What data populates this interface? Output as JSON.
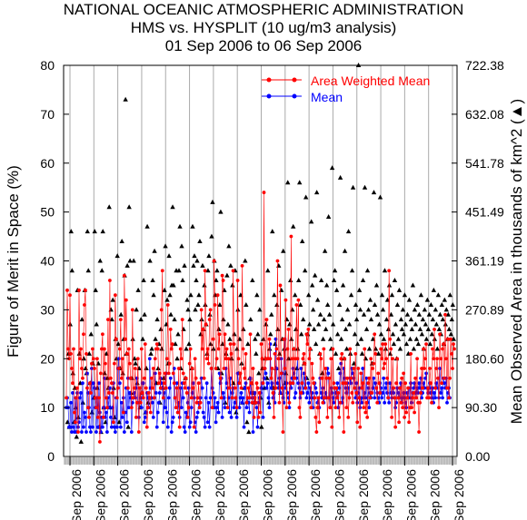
{
  "chart_data": {
    "type": "line",
    "title": [
      "NATIONAL OCEANIC ATMOSPHERIC ADMINISTRATION",
      "HMS vs. HYSPLIT (10 ug/m3 analysis)",
      "01 Sep 2006 to 06 Sep 2006"
    ],
    "ylabel": "Figure of Merit in Space (%)",
    "y2label": "Mean Observed Area in thousands of km^2 (▲)",
    "ylim": [
      0,
      80
    ],
    "yticks": [
      "0",
      "10",
      "20",
      "30",
      "40",
      "50",
      "60",
      "70",
      "80"
    ],
    "y2lim": [
      0,
      722.38
    ],
    "y2ticks": [
      "0.00",
      "90.30",
      "180.60",
      "270.89",
      "361.19",
      "451.49",
      "541.78",
      "632.08",
      "722.38"
    ],
    "xtick_label": "Sep 2006",
    "xtick_count": 17,
    "legend_placement": "top-right",
    "colors": {
      "area_weighted_mean": "#ff0000",
      "mean": "#0000ff",
      "area": "#000000",
      "grid": "#aaaaaa"
    },
    "series": [
      {
        "name": "Area Weighted Mean",
        "values": [
          12,
          34,
          22,
          20,
          33,
          21,
          18,
          15,
          22,
          9,
          7,
          12,
          14,
          5,
          34,
          20,
          22,
          18,
          16,
          25,
          31,
          34,
          21,
          14,
          10,
          8,
          15,
          13,
          19,
          22,
          20,
          18,
          12,
          10,
          20,
          8,
          12,
          3,
          17,
          22,
          25,
          8,
          22,
          19,
          12,
          10,
          28,
          13,
          36,
          16,
          15,
          13,
          7,
          19,
          33,
          24,
          12,
          14,
          18,
          22,
          28,
          16,
          20,
          9,
          37,
          24,
          32,
          21,
          14,
          22,
          19,
          16,
          10,
          30,
          12,
          14,
          18,
          8,
          11,
          20,
          5,
          14,
          11,
          22,
          13,
          12,
          16,
          23,
          14,
          6,
          10,
          13,
          12,
          9,
          16,
          14,
          18,
          12,
          20,
          22,
          23,
          22,
          15,
          17,
          14,
          30,
          38,
          12,
          15,
          17,
          14,
          20,
          31,
          17,
          19,
          26,
          22,
          23,
          17,
          15,
          12,
          10,
          14,
          9,
          18,
          6,
          22,
          20,
          28,
          17,
          15,
          14,
          16,
          13,
          8,
          10,
          19,
          22,
          12,
          18,
          14,
          6,
          20,
          16,
          11,
          12,
          15,
          10,
          11,
          30,
          22,
          26,
          16,
          38,
          27,
          20,
          22,
          19,
          28,
          30,
          18,
          10,
          24,
          40,
          31,
          18,
          20,
          33,
          22,
          25,
          16,
          12,
          37,
          36,
          18,
          25,
          20,
          22,
          10,
          20,
          14,
          23,
          21,
          12,
          38,
          23,
          14,
          12,
          10,
          36,
          20,
          15,
          17,
          14,
          39,
          22,
          18,
          16,
          21,
          11,
          12,
          14,
          12,
          25,
          15,
          11,
          18,
          8,
          12,
          11,
          15,
          14,
          8,
          13,
          9,
          23,
          20,
          15,
          54,
          18,
          20,
          28,
          20,
          20,
          24,
          20,
          16,
          18,
          13,
          8,
          21,
          14,
          22,
          40,
          20,
          11,
          35,
          17,
          14,
          5,
          24,
          18,
          32,
          10,
          22,
          26,
          11,
          15,
          45,
          20,
          15,
          22,
          16,
          20,
          31,
          20,
          32,
          10,
          8,
          13,
          15,
          20,
          21,
          19,
          14,
          25,
          23,
          26,
          20,
          22,
          10,
          19,
          16,
          15,
          12,
          8,
          5,
          10,
          12,
          7,
          21,
          20,
          16,
          11,
          22,
          12,
          18,
          16,
          8,
          12,
          16,
          10,
          20,
          6,
          22,
          15,
          14,
          10,
          14,
          12,
          13,
          8,
          11,
          20,
          21,
          15,
          5,
          20,
          15,
          10,
          16,
          8,
          12,
          22,
          16,
          13,
          11,
          18,
          14,
          21,
          13,
          7,
          18,
          12,
          6,
          17,
          14,
          15,
          10,
          22,
          9,
          11,
          8,
          15,
          16,
          12,
          20,
          13,
          18,
          19,
          25,
          21,
          14,
          11,
          17,
          15,
          13,
          22,
          20,
          23,
          18,
          19,
          23,
          20,
          16,
          12,
          38,
          24,
          22,
          8,
          20,
          14,
          12,
          6,
          15,
          20,
          12,
          7,
          14,
          11,
          16,
          10,
          17,
          8,
          15,
          9,
          12,
          14,
          7,
          10,
          21,
          10,
          12,
          13,
          9,
          16,
          12,
          20,
          11,
          5,
          11,
          13,
          18,
          14,
          22,
          18,
          20,
          23,
          12,
          14,
          12,
          18,
          15,
          11,
          22,
          20,
          26,
          14,
          18,
          20,
          16,
          10,
          25,
          20,
          15,
          22,
          23,
          16,
          29,
          20,
          14,
          24,
          12,
          16,
          24,
          21,
          18,
          23,
          22
        ],
        "color": "#ff0000"
      },
      {
        "name": "Mean",
        "values": [
          10,
          12,
          10,
          6,
          6,
          11,
          5,
          13,
          6,
          5,
          12,
          5,
          13,
          6,
          7,
          12,
          13,
          5,
          15,
          6,
          9,
          8,
          5,
          17,
          13,
          10,
          6,
          5,
          18,
          6,
          15,
          14,
          10,
          5,
          12,
          6,
          15,
          9,
          5,
          8,
          6,
          10,
          16,
          8,
          9,
          5,
          12,
          10,
          14,
          8,
          6,
          10,
          15,
          6,
          5,
          12,
          6,
          18,
          20,
          15,
          6,
          11,
          8,
          12,
          5,
          9,
          14,
          7,
          16,
          10,
          13,
          12,
          5,
          11,
          12,
          13,
          12,
          14,
          16,
          11,
          8,
          14,
          12,
          10,
          15,
          15,
          7,
          8,
          9,
          13,
          12,
          10,
          20,
          14,
          12,
          11,
          8,
          12,
          17,
          13,
          6,
          9,
          11,
          13,
          16,
          15,
          14,
          7,
          13,
          10,
          17,
          9,
          6,
          12,
          14,
          16,
          5,
          7,
          8,
          18,
          12,
          10,
          15,
          9,
          11,
          8,
          14,
          10,
          15,
          12,
          6,
          5,
          9,
          8,
          11,
          14,
          6,
          7,
          10,
          13,
          15,
          12,
          7,
          5,
          8,
          9,
          11,
          10,
          12,
          16,
          14,
          9,
          8,
          6,
          12,
          15,
          7,
          11,
          6,
          12,
          18,
          14,
          13,
          10,
          12,
          7,
          10,
          11,
          9,
          17,
          15,
          16,
          8,
          13,
          12,
          10,
          18,
          15,
          14,
          12,
          9,
          16,
          8,
          13,
          14,
          10,
          11,
          12,
          8,
          17,
          15,
          10,
          12,
          13,
          11,
          12,
          6,
          14,
          15,
          10,
          12,
          11,
          9,
          16,
          13,
          12,
          5,
          12,
          13,
          11,
          10,
          6,
          11,
          12,
          13,
          14,
          15,
          8,
          16,
          18,
          17,
          14,
          15,
          12,
          10,
          23,
          14,
          15,
          12,
          13,
          11,
          24,
          18,
          15,
          14,
          16,
          13,
          20,
          17,
          12,
          11,
          24,
          14,
          15,
          13,
          12,
          10,
          15,
          14,
          16,
          18,
          17,
          12,
          13,
          16,
          20,
          15,
          14,
          12,
          18,
          15,
          13,
          17,
          14,
          16,
          12,
          13,
          15,
          11,
          14,
          12,
          13,
          10,
          12,
          15,
          14,
          13,
          11,
          12,
          10,
          16,
          13,
          12,
          14,
          11,
          12,
          13,
          12,
          18,
          17,
          12,
          10,
          14,
          13,
          12,
          11,
          14,
          13,
          12,
          15,
          10,
          14,
          17,
          19,
          11,
          12,
          18,
          16,
          14,
          13,
          15,
          14,
          12,
          16,
          15,
          18,
          17,
          16,
          14,
          12,
          15,
          11,
          13,
          14,
          10,
          12,
          11,
          18,
          12,
          13,
          12,
          16,
          11,
          14,
          10,
          13,
          12,
          13,
          14,
          16,
          12,
          15,
          14,
          13,
          12,
          11,
          15,
          14,
          12,
          13,
          16,
          11,
          14,
          15,
          13,
          12,
          11,
          15,
          13,
          12,
          14,
          13,
          12,
          10,
          11,
          14,
          13,
          12,
          14,
          15,
          11,
          12,
          13,
          12,
          11,
          10,
          13,
          12,
          14,
          12,
          15,
          11,
          13,
          14,
          15,
          13,
          12,
          14,
          13,
          15,
          14,
          16,
          12,
          13,
          15,
          14,
          16,
          17,
          14,
          13,
          14,
          15,
          13,
          12,
          14,
          11,
          13,
          12,
          15,
          14,
          16,
          12,
          18,
          13,
          14,
          12,
          16,
          15,
          14,
          16,
          11,
          13,
          14,
          12
        ],
        "color": "#0000ff"
      },
      {
        "name": "Mean Observed Area",
        "axis": "right",
        "values": [
          7,
          21,
          6,
          27,
          46,
          38,
          17,
          7,
          14,
          10,
          4,
          34,
          8,
          21,
          15,
          3,
          28,
          11,
          20,
          34,
          18,
          17,
          46,
          38,
          21,
          15,
          25,
          9,
          19,
          12,
          46,
          34,
          27,
          14,
          19,
          6,
          40,
          5,
          38,
          46,
          10,
          17,
          7,
          21,
          16,
          14,
          51,
          10,
          30,
          28,
          32,
          14,
          8,
          24,
          20,
          41,
          23,
          7,
          18,
          29,
          44,
          17,
          24,
          37,
          73,
          21,
          39,
          6,
          51,
          40,
          13,
          16,
          24,
          40,
          20,
          19,
          30,
          15,
          34,
          18,
          10,
          28,
          13,
          24,
          36,
          29,
          9,
          18,
          47,
          11,
          12,
          40,
          21,
          22,
          36,
          33,
          42,
          24,
          15,
          28,
          18,
          23,
          11,
          26,
          22,
          14,
          16,
          34,
          43,
          27,
          32,
          19,
          41,
          33,
          29,
          35,
          51,
          35,
          28,
          23,
          38,
          20,
          25,
          38,
          47,
          18,
          43,
          36,
          26,
          39,
          16,
          22,
          32,
          30,
          23,
          28,
          33,
          18,
          47,
          39,
          41,
          30,
          36,
          40,
          31,
          33,
          44,
          25,
          28,
          39,
          26,
          35,
          31,
          27,
          21,
          38,
          41,
          29,
          23,
          45,
          52,
          22,
          40,
          33,
          36,
          38,
          18,
          26,
          31,
          50,
          17,
          23,
          28,
          34,
          11,
          21,
          37,
          27,
          43,
          24,
          39,
          20,
          35,
          15,
          25,
          38,
          9,
          22,
          30,
          17,
          24,
          33,
          19,
          11,
          26,
          14,
          40,
          31,
          7,
          23,
          5,
          16,
          28,
          15,
          36,
          13,
          11,
          24,
          21,
          33,
          25,
          17,
          30,
          12,
          6,
          18,
          24,
          14,
          20,
          27,
          16,
          38,
          11,
          22,
          25,
          29,
          46,
          14,
          33,
          23,
          18,
          31,
          26,
          39,
          21,
          13,
          34,
          24,
          42,
          22,
          15,
          17,
          28,
          56,
          20,
          27,
          36,
          24,
          30,
          47,
          22,
          33,
          26,
          18,
          22,
          36,
          56,
          31,
          25,
          44,
          28,
          19,
          38,
          53,
          16,
          25,
          33,
          27,
          22,
          48,
          35,
          30,
          26,
          37,
          23,
          54,
          32,
          27,
          21,
          29,
          36,
          17,
          24,
          28,
          42,
          26,
          35,
          31,
          49,
          29,
          24,
          22,
          59,
          27,
          36,
          38,
          21,
          34,
          25,
          18,
          31,
          57,
          24,
          28,
          35,
          20,
          42,
          26,
          22,
          30,
          46,
          27,
          21,
          33,
          38,
          55,
          19,
          25,
          31,
          28,
          23,
          80,
          34,
          30,
          24,
          21,
          36,
          29,
          55,
          20,
          26,
          38,
          30,
          22,
          32,
          28,
          19,
          24,
          54,
          31,
          22,
          35,
          29,
          21,
          27,
          53,
          25,
          33,
          30,
          24,
          38,
          22,
          28,
          32,
          26,
          35,
          21,
          29,
          33,
          25,
          23,
          36,
          27,
          20,
          31,
          24,
          34,
          22,
          28,
          26,
          30,
          25,
          33,
          27,
          23,
          29,
          21,
          32,
          24,
          28,
          26,
          35,
          22,
          30,
          27,
          24,
          31,
          23,
          29,
          26,
          33,
          25,
          28,
          22,
          30,
          27,
          24,
          32,
          26,
          29,
          23,
          31,
          25,
          28,
          34,
          24,
          30,
          27,
          22,
          33,
          26,
          29,
          25,
          31,
          28,
          23,
          32,
          27,
          30,
          24,
          29,
          26,
          33,
          25,
          28,
          31,
          24
        ],
        "color": "#000000"
      }
    ]
  }
}
